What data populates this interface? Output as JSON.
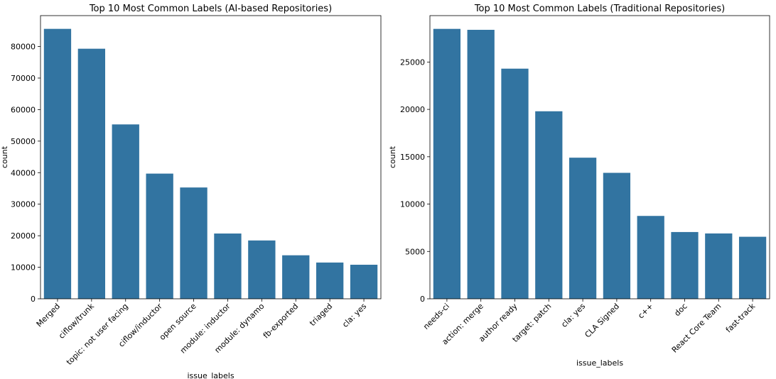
{
  "chart_data": [
    {
      "type": "bar",
      "title": "Top 10 Most Common Labels (AI-based Repositories)",
      "xlabel": "issue_labels",
      "ylabel": "count",
      "categories": [
        "Merged",
        "ciflow/trunk",
        "topic: not user facing",
        "ciflow/inductor",
        "open source",
        "module: inductor",
        "module: dynamo",
        "fb-exported",
        "triaged",
        "cla: yes"
      ],
      "values": [
        85600,
        79300,
        55300,
        39700,
        35300,
        20700,
        18500,
        13800,
        11500,
        10800
      ],
      "ylim": [
        0,
        89800
      ],
      "yticks": [
        0,
        10000,
        20000,
        30000,
        40000,
        50000,
        60000,
        70000,
        80000
      ],
      "grid": false,
      "color": "#3274a1"
    },
    {
      "type": "bar",
      "title": "Top 10 Most Common Labels (Traditional Repositories)",
      "xlabel": "issue_labels",
      "ylabel": "count",
      "categories": [
        "needs-ci",
        "action: merge",
        "author ready",
        "target: patch",
        "cla: yes",
        "CLA Signed",
        "c++",
        "doc",
        "React Core Team",
        "fast-track"
      ],
      "values": [
        28500,
        28400,
        24300,
        19800,
        14900,
        13300,
        8750,
        7050,
        6900,
        6550
      ],
      "ylim": [
        0,
        29900
      ],
      "yticks": [
        0,
        5000,
        10000,
        15000,
        20000,
        25000
      ],
      "grid": false,
      "color": "#3274a1"
    }
  ]
}
